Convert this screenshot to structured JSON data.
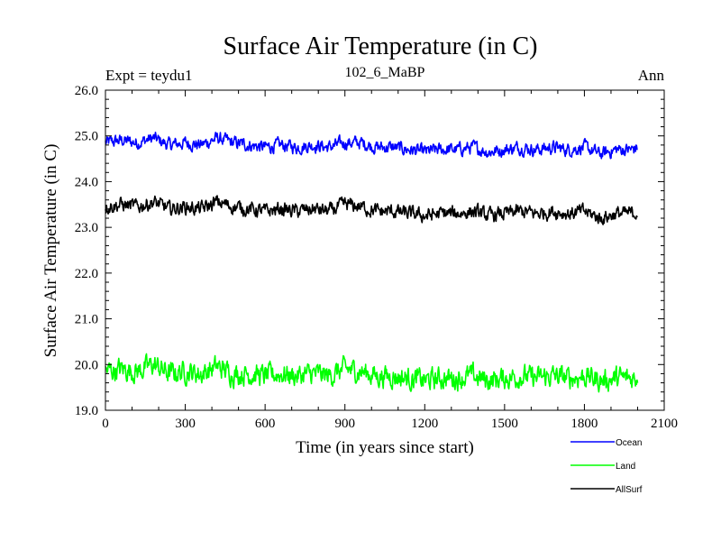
{
  "chart_data": {
    "type": "line",
    "title": "Surface Air Temperature (in C)",
    "subtitle": "102_6_MaBP",
    "left_label": "Expt = teydu1",
    "right_label": "Ann",
    "xlabel": "Time (in years since start)",
    "ylabel": "Surface Air Temperature (in C)",
    "xlim": [
      0,
      2100
    ],
    "ylim": [
      19.0,
      26.0
    ],
    "xticks": [
      0,
      300,
      600,
      900,
      1200,
      1500,
      1800,
      2100
    ],
    "yticks": [
      19.0,
      20.0,
      21.0,
      22.0,
      23.0,
      24.0,
      25.0,
      26.0
    ],
    "grid": false,
    "legend_position": "bottom-right",
    "series": [
      {
        "name": "Ocean",
        "color": "#0000ff",
        "x": [
          0,
          60,
          120,
          180,
          240,
          300,
          360,
          420,
          480,
          540,
          600,
          660,
          720,
          780,
          840,
          900,
          960,
          1020,
          1080,
          1140,
          1200,
          1260,
          1320,
          1380,
          1440,
          1500,
          1560,
          1620,
          1680,
          1740,
          1800,
          1860,
          1920,
          1980,
          2000
        ],
        "values": [
          24.85,
          24.9,
          24.85,
          24.95,
          24.8,
          24.85,
          24.8,
          24.95,
          24.85,
          24.8,
          24.75,
          24.8,
          24.75,
          24.8,
          24.75,
          24.85,
          24.85,
          24.75,
          24.75,
          24.7,
          24.65,
          24.7,
          24.7,
          24.75,
          24.65,
          24.7,
          24.75,
          24.7,
          24.75,
          24.7,
          24.75,
          24.6,
          24.7,
          24.7,
          24.75
        ]
      },
      {
        "name": "Land",
        "color": "#00ff00",
        "x": [
          0,
          60,
          120,
          180,
          240,
          300,
          360,
          420,
          480,
          540,
          600,
          660,
          720,
          780,
          840,
          900,
          960,
          1020,
          1080,
          1140,
          1200,
          1260,
          1320,
          1380,
          1440,
          1500,
          1560,
          1620,
          1680,
          1740,
          1800,
          1860,
          1920,
          1980,
          2000
        ],
        "values": [
          19.85,
          19.9,
          19.85,
          20.0,
          19.8,
          19.85,
          19.8,
          19.95,
          19.8,
          19.8,
          19.75,
          19.8,
          19.75,
          19.8,
          19.75,
          19.9,
          19.85,
          19.75,
          19.75,
          19.7,
          19.65,
          19.7,
          19.7,
          19.75,
          19.65,
          19.7,
          19.75,
          19.7,
          19.75,
          19.7,
          19.75,
          19.65,
          19.7,
          19.7,
          19.75
        ]
      },
      {
        "name": "AllSurf",
        "color": "#000000",
        "x": [
          0,
          60,
          120,
          180,
          240,
          300,
          360,
          420,
          480,
          540,
          600,
          660,
          720,
          780,
          840,
          900,
          960,
          1020,
          1080,
          1140,
          1200,
          1260,
          1320,
          1380,
          1440,
          1500,
          1560,
          1620,
          1680,
          1740,
          1800,
          1860,
          1920,
          1980,
          2000
        ],
        "values": [
          23.45,
          23.5,
          23.45,
          23.55,
          23.4,
          23.45,
          23.4,
          23.55,
          23.45,
          23.4,
          23.35,
          23.4,
          23.35,
          23.4,
          23.35,
          23.5,
          23.45,
          23.35,
          23.35,
          23.3,
          23.25,
          23.3,
          23.3,
          23.35,
          23.25,
          23.3,
          23.35,
          23.3,
          23.35,
          23.3,
          23.35,
          23.2,
          23.3,
          23.3,
          23.35
        ]
      }
    ]
  }
}
